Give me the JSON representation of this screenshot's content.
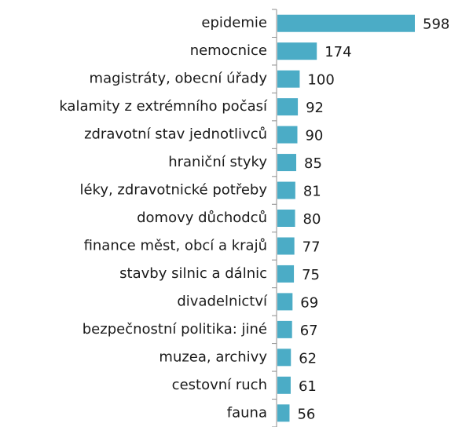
{
  "chart_data": {
    "type": "bar",
    "orientation": "horizontal",
    "categories": [
      "epidemie",
      "nemocnice",
      "magistráty, obecní úřady",
      "kalamity z extrémního počasí",
      "zdravotní stav jednotlivců",
      "hraniční styky",
      "léky, zdravotnické potřeby",
      "domovy důchodců",
      "finance měst, obcí a krajů",
      "stavby silnic a dálnic",
      "divadelnictví",
      "bezpečnostní politika: jiné",
      "muzea, archivy",
      "cestovní ruch",
      "fauna"
    ],
    "values": [
      598,
      174,
      100,
      92,
      90,
      85,
      81,
      80,
      77,
      75,
      69,
      67,
      62,
      61,
      56
    ],
    "color": "#4bacc6"
  }
}
